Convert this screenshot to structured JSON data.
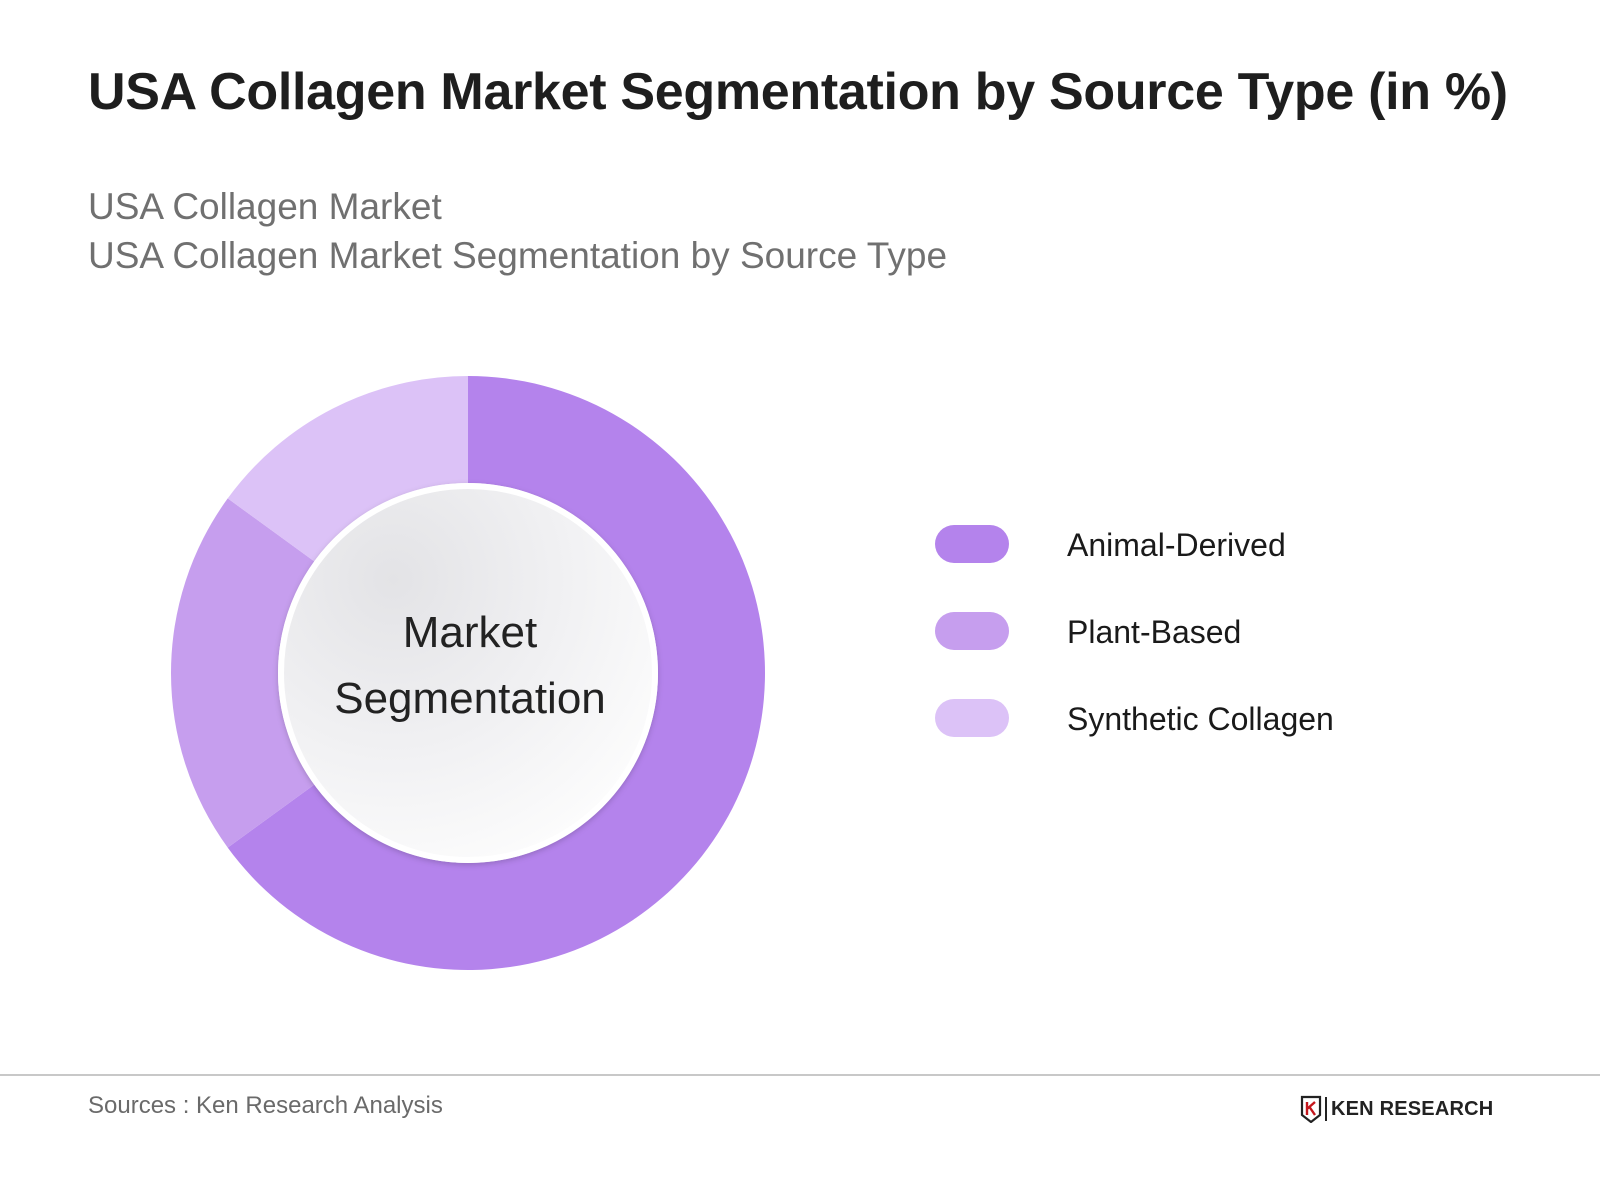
{
  "title": "USA Collagen Market Segmentation by Source Type (in %)",
  "subtitle_line1": "USA Collagen Market",
  "subtitle_line2": "USA Collagen Market Segmentation by Source Type",
  "center_label": {
    "line1": "Market",
    "line2": "Segmentation"
  },
  "chart_data": {
    "type": "pie",
    "title": "USA Collagen Market Segmentation by Source Type (in %)",
    "categories": [
      "Animal-Derived",
      "Plant-Based",
      "Synthetic Collagen"
    ],
    "values": [
      65,
      20,
      15
    ],
    "colors": [
      "#b483ec",
      "#c69eee",
      "#dcc2f7"
    ],
    "legend_position": "right"
  },
  "legend": {
    "items": [
      {
        "label": "Animal-Derived",
        "color": "#b483ec"
      },
      {
        "label": "Plant-Based",
        "color": "#c69eee"
      },
      {
        "label": "Synthetic Collagen",
        "color": "#dcc2f7"
      }
    ]
  },
  "footer": {
    "sources": "Sources : Ken Research Analysis",
    "brand": "KEN RESEARCH",
    "brand_icon": "ken-research-logo-icon"
  }
}
